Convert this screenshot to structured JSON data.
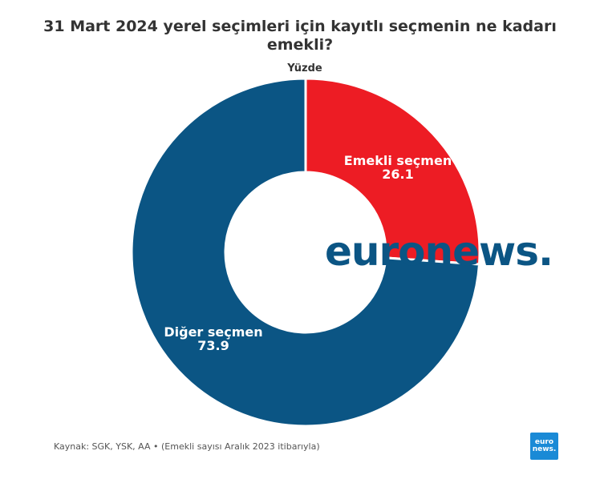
{
  "chart_data": {
    "type": "pie",
    "title": "31 Mart 2024 yerel seçimleri için kayıtlı seçmenin ne kadarı emekli?",
    "subtitle": "Yüzde",
    "slices": [
      {
        "label": "Emekli seçmen",
        "value": 26.1,
        "value_text": "26.1",
        "color": "#ed1c24"
      },
      {
        "label": "Diğer seçmen",
        "value": 73.9,
        "value_text": "73.9",
        "color": "#0b5584"
      }
    ]
  },
  "source": "Kaynak: SGK, YSK, AA • (Emekli sayısı Aralık 2023 itibarıyla)",
  "watermark": "euronews.",
  "logo": {
    "line1": "euro",
    "line2": "news."
  }
}
